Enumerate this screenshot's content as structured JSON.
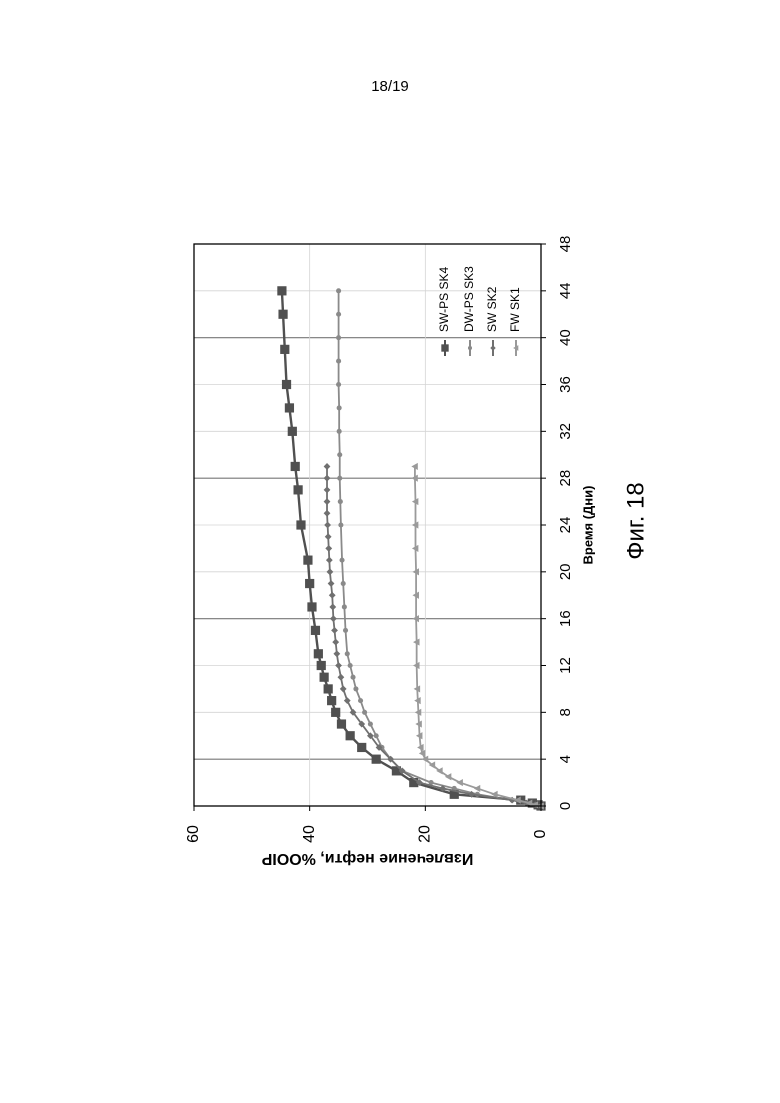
{
  "page": {
    "number": "18/19"
  },
  "figure": {
    "caption": "Фиг. 18"
  },
  "chart_data": {
    "type": "line",
    "orientation": "rotated 90° clockwise on page",
    "xlabel": "Время (Дни)",
    "ylabel": "Извлечение нефти, %OOIP",
    "xlim": [
      0,
      48
    ],
    "ylim": [
      0,
      60
    ],
    "x_ticks": [
      "0",
      "4",
      "8",
      "12",
      "16",
      "20",
      "24",
      "28",
      "32",
      "36",
      "40",
      "44",
      "48"
    ],
    "y_ticks": [
      "0",
      "20",
      "40",
      "60"
    ],
    "grid": true,
    "legend_position": "top-right",
    "series": [
      {
        "name": "SW-PS SK4",
        "marker": "square",
        "color": "#505050",
        "x": [
          0,
          0.1,
          0.25,
          0.5,
          1,
          2,
          3,
          4,
          5,
          6,
          7,
          8,
          9,
          10,
          11,
          12,
          13,
          15,
          17,
          19,
          21,
          24,
          27,
          29,
          32,
          34,
          36,
          39,
          42,
          44
        ],
        "y": [
          0,
          0.5,
          1.5,
          3.5,
          15,
          22,
          25,
          28.5,
          31,
          33,
          34.5,
          35.5,
          36.2,
          36.8,
          37.5,
          38,
          38.5,
          39,
          39.6,
          40,
          40.3,
          41.5,
          42,
          42.5,
          43,
          43.5,
          44,
          44.3,
          44.6,
          44.8
        ]
      },
      {
        "name": "DW-PS SK3",
        "marker": "circle",
        "color": "#8a8a8a",
        "x": [
          0,
          0.1,
          0.25,
          0.5,
          1,
          1.5,
          2,
          3,
          4,
          5,
          6,
          7,
          8,
          9,
          10,
          11,
          12,
          13,
          15,
          17,
          19,
          21,
          24,
          26,
          28,
          30,
          32,
          34,
          36,
          38,
          40,
          42,
          44
        ],
        "y": [
          0,
          1,
          2.5,
          5,
          11,
          15,
          19,
          24,
          26,
          27.5,
          28.5,
          29.5,
          30.5,
          31.2,
          32,
          32.5,
          33,
          33.5,
          33.8,
          34,
          34.2,
          34.4,
          34.6,
          34.7,
          34.8,
          34.8,
          34.9,
          34.9,
          35,
          35,
          35,
          35,
          35
        ]
      },
      {
        "name": "SW SK2",
        "marker": "diamond",
        "color": "#707070",
        "x": [
          0,
          0.1,
          0.25,
          0.5,
          1,
          1.5,
          2,
          3,
          4,
          5,
          6,
          7,
          8,
          9,
          10,
          11,
          12,
          13,
          14,
          15,
          16,
          17,
          18,
          19,
          20,
          21,
          22,
          23,
          24,
          25,
          26,
          27,
          28,
          29
        ],
        "y": [
          0,
          1,
          2.5,
          5,
          12,
          17,
          21,
          24,
          26,
          28,
          29.5,
          31,
          32.5,
          33.5,
          34.2,
          34.6,
          35,
          35.3,
          35.5,
          35.7,
          35.9,
          36,
          36.1,
          36.3,
          36.5,
          36.6,
          36.7,
          36.8,
          36.9,
          37,
          37,
          37,
          37,
          37
        ]
      },
      {
        "name": "FW  SK1",
        "marker": "triangle",
        "color": "#9a9a9a",
        "x": [
          0,
          0.1,
          0.25,
          0.5,
          1,
          1.5,
          2,
          2.5,
          3,
          3.5,
          4,
          4.5,
          5,
          6,
          7,
          8,
          9,
          10,
          12,
          14,
          16,
          18,
          20,
          22,
          24,
          26,
          28,
          29
        ],
        "y": [
          0,
          1,
          2,
          4,
          8,
          11,
          14,
          16,
          17.5,
          18.8,
          20,
          20.5,
          20.8,
          21,
          21.1,
          21.2,
          21.3,
          21.4,
          21.5,
          21.5,
          21.6,
          21.6,
          21.6,
          21.7,
          21.7,
          21.7,
          21.8,
          21.8
        ]
      }
    ]
  }
}
